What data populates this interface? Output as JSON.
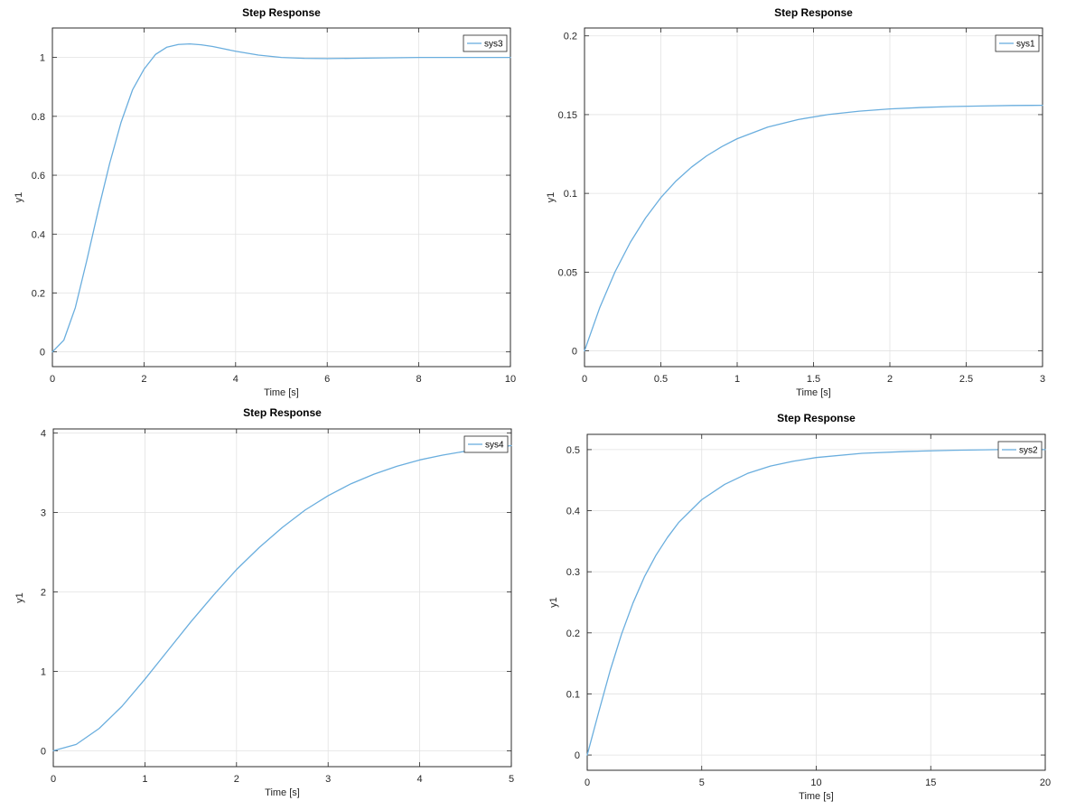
{
  "chart_data": [
    {
      "type": "line",
      "title": "Step Response",
      "xlabel": "Time [s]",
      "ylabel": "y1",
      "xlim": [
        0,
        10
      ],
      "ylim": [
        -0.05,
        1.1
      ],
      "xticks": [
        0,
        2,
        4,
        6,
        8,
        10
      ],
      "yticks": [
        0,
        0.2,
        0.4,
        0.6,
        0.8,
        1
      ],
      "grid": true,
      "legend_position": "top-right",
      "series": [
        {
          "name": "sys3",
          "color": "#6aaede",
          "x": [
            0,
            0.25,
            0.5,
            0.75,
            1,
            1.25,
            1.5,
            1.75,
            2,
            2.25,
            2.5,
            2.75,
            3,
            3.25,
            3.5,
            3.75,
            4,
            4.5,
            5,
            5.5,
            6,
            6.5,
            7,
            8,
            9,
            10
          ],
          "y": [
            0,
            0.04,
            0.15,
            0.31,
            0.48,
            0.64,
            0.78,
            0.89,
            0.96,
            1.01,
            1.035,
            1.044,
            1.046,
            1.043,
            1.037,
            1.029,
            1.021,
            1.008,
            1.0,
            0.997,
            0.996,
            0.997,
            0.998,
            1.0,
            1.0,
            1.0
          ]
        }
      ]
    },
    {
      "type": "line",
      "title": "Step Response",
      "xlabel": "Time [s]",
      "ylabel": "y1",
      "xlim": [
        0,
        3
      ],
      "ylim": [
        -0.01,
        0.205
      ],
      "xticks": [
        0,
        0.5,
        1,
        1.5,
        2,
        2.5,
        3
      ],
      "yticks": [
        0,
        0.05,
        0.1,
        0.15,
        0.2
      ],
      "grid": true,
      "legend_position": "top-right",
      "series": [
        {
          "name": "sys1",
          "color": "#6aaede",
          "x": [
            0,
            0.1,
            0.2,
            0.3,
            0.4,
            0.5,
            0.6,
            0.7,
            0.8,
            0.9,
            1,
            1.2,
            1.4,
            1.6,
            1.8,
            2,
            2.2,
            2.4,
            2.6,
            2.8,
            3
          ],
          "y": [
            0,
            0.0275,
            0.0502,
            0.0689,
            0.0844,
            0.0973,
            0.1079,
            0.1166,
            0.1238,
            0.1297,
            0.1347,
            0.1421,
            0.1469,
            0.1501,
            0.1522,
            0.1536,
            0.1545,
            0.1551,
            0.1555,
            0.1558,
            0.1559
          ]
        }
      ]
    },
    {
      "type": "line",
      "title": "Step Response",
      "xlabel": "Time [s]",
      "ylabel": "y1",
      "xlim": [
        0,
        5
      ],
      "ylim": [
        -0.2,
        4.05
      ],
      "xticks": [
        0,
        1,
        2,
        3,
        4,
        5
      ],
      "yticks": [
        0,
        1,
        2,
        3,
        4
      ],
      "grid": true,
      "legend_position": "top-right",
      "series": [
        {
          "name": "sys4",
          "color": "#6aaede",
          "x": [
            0,
            0.25,
            0.5,
            0.75,
            1,
            1.25,
            1.5,
            1.75,
            2,
            2.25,
            2.5,
            2.75,
            3,
            3.25,
            3.5,
            3.75,
            4,
            4.25,
            4.5,
            4.75,
            5
          ],
          "y": [
            0,
            0.08,
            0.28,
            0.56,
            0.9,
            1.26,
            1.62,
            1.96,
            2.28,
            2.56,
            2.81,
            3.03,
            3.21,
            3.36,
            3.48,
            3.58,
            3.66,
            3.72,
            3.77,
            3.81,
            3.84
          ]
        }
      ]
    },
    {
      "type": "line",
      "title": "Step Response",
      "xlabel": "Time [s]",
      "ylabel": "y1",
      "xlim": [
        0,
        20
      ],
      "ylim": [
        -0.025,
        0.525
      ],
      "xticks": [
        0,
        5,
        10,
        15,
        20
      ],
      "yticks": [
        0,
        0.1,
        0.2,
        0.3,
        0.4,
        0.5
      ],
      "grid": true,
      "legend_position": "top-right",
      "series": [
        {
          "name": "sys2",
          "color": "#6aaede",
          "x": [
            0,
            0.5,
            1,
            1.5,
            2,
            2.5,
            3,
            3.5,
            4,
            5,
            6,
            7,
            8,
            9,
            10,
            12,
            14,
            16,
            18,
            20
          ],
          "y": [
            0,
            0.07,
            0.138,
            0.198,
            0.249,
            0.292,
            0.327,
            0.356,
            0.381,
            0.418,
            0.443,
            0.461,
            0.473,
            0.481,
            0.487,
            0.494,
            0.497,
            0.499,
            0.5,
            0.5
          ]
        }
      ]
    }
  ]
}
